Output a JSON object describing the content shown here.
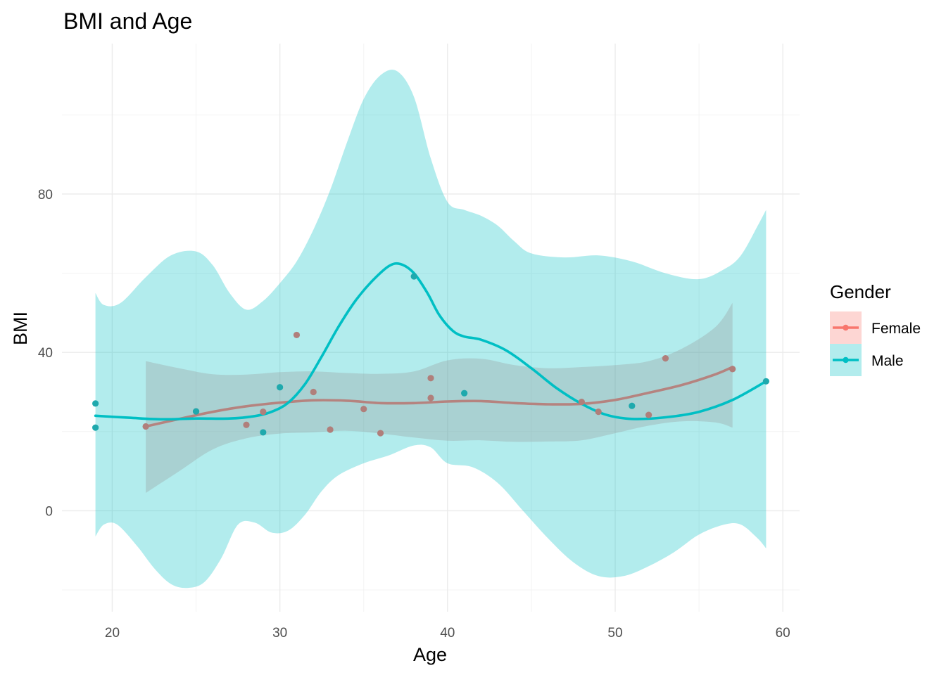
{
  "chart_data": {
    "type": "scatter",
    "title": "BMI and Age",
    "xlabel": "Age",
    "ylabel": "BMI",
    "xlim": [
      17,
      61
    ],
    "ylim": [
      -25.5,
      118
    ],
    "x_ticks": [
      20,
      30,
      40,
      50,
      60
    ],
    "y_ticks": [
      0,
      40,
      80
    ],
    "grid": true,
    "legend": {
      "title": "Gender",
      "placement": "right",
      "entries": [
        "Female",
        "Male"
      ]
    },
    "series": [
      {
        "name": "Female",
        "color": "#F8766D",
        "points": [
          [
            22,
            21.3
          ],
          [
            25,
            25.1
          ],
          [
            28,
            21.7
          ],
          [
            29,
            25.0
          ],
          [
            31,
            44.4
          ],
          [
            32,
            30.0
          ],
          [
            33,
            20.5
          ],
          [
            35,
            25.7
          ],
          [
            36,
            19.6
          ],
          [
            39,
            33.5
          ],
          [
            39,
            28.5
          ],
          [
            48,
            27.5
          ],
          [
            49,
            25.0
          ],
          [
            52,
            24.2
          ],
          [
            53,
            38.5
          ],
          [
            57,
            35.8
          ]
        ],
        "smooth": [
          [
            22,
            21.3
          ],
          [
            24,
            23.2
          ],
          [
            26,
            25.0
          ],
          [
            28,
            26.4
          ],
          [
            30,
            27.3
          ],
          [
            32,
            27.9
          ],
          [
            34,
            27.8
          ],
          [
            36,
            27.2
          ],
          [
            38,
            27.2
          ],
          [
            40,
            27.6
          ],
          [
            42,
            27.7
          ],
          [
            44,
            27.2
          ],
          [
            46,
            26.9
          ],
          [
            48,
            27.0
          ],
          [
            50,
            28.0
          ],
          [
            52,
            29.8
          ],
          [
            54,
            31.8
          ],
          [
            56,
            34.5
          ],
          [
            57,
            36.3
          ]
        ],
        "band_upper": [
          [
            22,
            37.8
          ],
          [
            24,
            36.0
          ],
          [
            26,
            34.5
          ],
          [
            28,
            34.4
          ],
          [
            30,
            35.0
          ],
          [
            32,
            35.2
          ],
          [
            34,
            34.8
          ],
          [
            36,
            34.6
          ],
          [
            38,
            35.2
          ],
          [
            40,
            38.0
          ],
          [
            42,
            38.4
          ],
          [
            44,
            36.8
          ],
          [
            46,
            36.0
          ],
          [
            48,
            36.3
          ],
          [
            50,
            36.8
          ],
          [
            52,
            37.8
          ],
          [
            54,
            41.0
          ],
          [
            56,
            46.5
          ],
          [
            57,
            52.5
          ]
        ],
        "band_lower": [
          [
            22,
            4.5
          ],
          [
            24,
            10.0
          ],
          [
            26,
            15.5
          ],
          [
            28,
            18.3
          ],
          [
            30,
            19.5
          ],
          [
            32,
            19.8
          ],
          [
            34,
            20.2
          ],
          [
            36,
            19.5
          ],
          [
            38,
            18.5
          ],
          [
            40,
            17.7
          ],
          [
            42,
            17.8
          ],
          [
            44,
            17.4
          ],
          [
            46,
            17.5
          ],
          [
            48,
            17.8
          ],
          [
            50,
            19.6
          ],
          [
            52,
            21.5
          ],
          [
            54,
            22.6
          ],
          [
            56,
            22.3
          ],
          [
            57,
            21.0
          ]
        ]
      },
      {
        "name": "Male",
        "color": "#00BFC4",
        "points": [
          [
            19,
            27.1
          ],
          [
            19,
            21.0
          ],
          [
            25,
            25.1
          ],
          [
            29,
            19.8
          ],
          [
            30,
            31.2
          ],
          [
            38,
            59.2
          ],
          [
            41,
            29.7
          ],
          [
            51,
            26.5
          ],
          [
            59,
            32.7
          ]
        ],
        "smooth": [
          [
            19,
            24.0
          ],
          [
            21,
            23.5
          ],
          [
            23,
            23.1
          ],
          [
            25,
            23.3
          ],
          [
            27,
            23.3
          ],
          [
            28.5,
            23.9
          ],
          [
            29.5,
            25.0
          ],
          [
            30.5,
            27.3
          ],
          [
            31.5,
            32.0
          ],
          [
            32.5,
            39.0
          ],
          [
            33.5,
            46.5
          ],
          [
            34.5,
            53.0
          ],
          [
            35.5,
            58.0
          ],
          [
            36.5,
            61.8
          ],
          [
            37.2,
            62.3
          ],
          [
            38,
            60.0
          ],
          [
            38.8,
            55.0
          ],
          [
            39.5,
            49.5
          ],
          [
            40.3,
            45.5
          ],
          [
            41,
            44.0
          ],
          [
            42,
            43.2
          ],
          [
            43.5,
            40.5
          ],
          [
            45,
            36.0
          ],
          [
            46.5,
            31.0
          ],
          [
            48,
            27.0
          ],
          [
            49.5,
            24.2
          ],
          [
            51,
            23.2
          ],
          [
            53,
            23.6
          ],
          [
            55,
            25.0
          ],
          [
            57,
            28.0
          ],
          [
            59,
            32.7
          ]
        ],
        "band_upper": [
          [
            19,
            55.0
          ],
          [
            19.5,
            52.0
          ],
          [
            20.5,
            52.5
          ],
          [
            22,
            59.0
          ],
          [
            23.5,
            64.5
          ],
          [
            25,
            65.5
          ],
          [
            26,
            62.0
          ],
          [
            27,
            55.0
          ],
          [
            28,
            50.8
          ],
          [
            29,
            53.0
          ],
          [
            30,
            57.5
          ],
          [
            31,
            63.0
          ],
          [
            32,
            71.0
          ],
          [
            33,
            81.0
          ],
          [
            34,
            93.0
          ],
          [
            35,
            104.0
          ],
          [
            36,
            110.0
          ],
          [
            37,
            111.0
          ],
          [
            38,
            104.5
          ],
          [
            39,
            89.0
          ],
          [
            40,
            78.0
          ],
          [
            41,
            76.0
          ],
          [
            42,
            74.5
          ],
          [
            43,
            72.0
          ],
          [
            44,
            68.0
          ],
          [
            45,
            65.0
          ],
          [
            47,
            64.0
          ],
          [
            49,
            64.5
          ],
          [
            51,
            63.0
          ],
          [
            53,
            60.0
          ],
          [
            55,
            58.5
          ],
          [
            56.5,
            61.0
          ],
          [
            57.5,
            64.5
          ],
          [
            58.5,
            72.0
          ],
          [
            59,
            76.0
          ]
        ],
        "band_lower": [
          [
            19,
            -6.5
          ],
          [
            19.5,
            -3.5
          ],
          [
            20.3,
            -3.5
          ],
          [
            21.5,
            -9.0
          ],
          [
            22.5,
            -14.5
          ],
          [
            23.5,
            -18.5
          ],
          [
            24.5,
            -19.5
          ],
          [
            25.5,
            -18.0
          ],
          [
            26.5,
            -12.0
          ],
          [
            27.5,
            -3.5
          ],
          [
            28.5,
            -3.0
          ],
          [
            29.5,
            -5.5
          ],
          [
            30.5,
            -5.0
          ],
          [
            31.5,
            -1.0
          ],
          [
            32.5,
            5.0
          ],
          [
            33.5,
            9.0
          ],
          [
            35,
            12.0
          ],
          [
            36.5,
            14.0
          ],
          [
            38,
            16.5
          ],
          [
            39,
            16.0
          ],
          [
            40,
            12.0
          ],
          [
            41.5,
            11.0
          ],
          [
            43,
            7.0
          ],
          [
            44.5,
            0.0
          ],
          [
            46,
            -7.0
          ],
          [
            47.5,
            -13.0
          ],
          [
            49,
            -16.5
          ],
          [
            50.5,
            -16.5
          ],
          [
            52,
            -14.0
          ],
          [
            53.5,
            -10.5
          ],
          [
            55,
            -6.0
          ],
          [
            56.5,
            -3.5
          ],
          [
            57.5,
            -3.5
          ],
          [
            58.5,
            -7.0
          ],
          [
            59,
            -9.5
          ]
        ]
      }
    ]
  }
}
